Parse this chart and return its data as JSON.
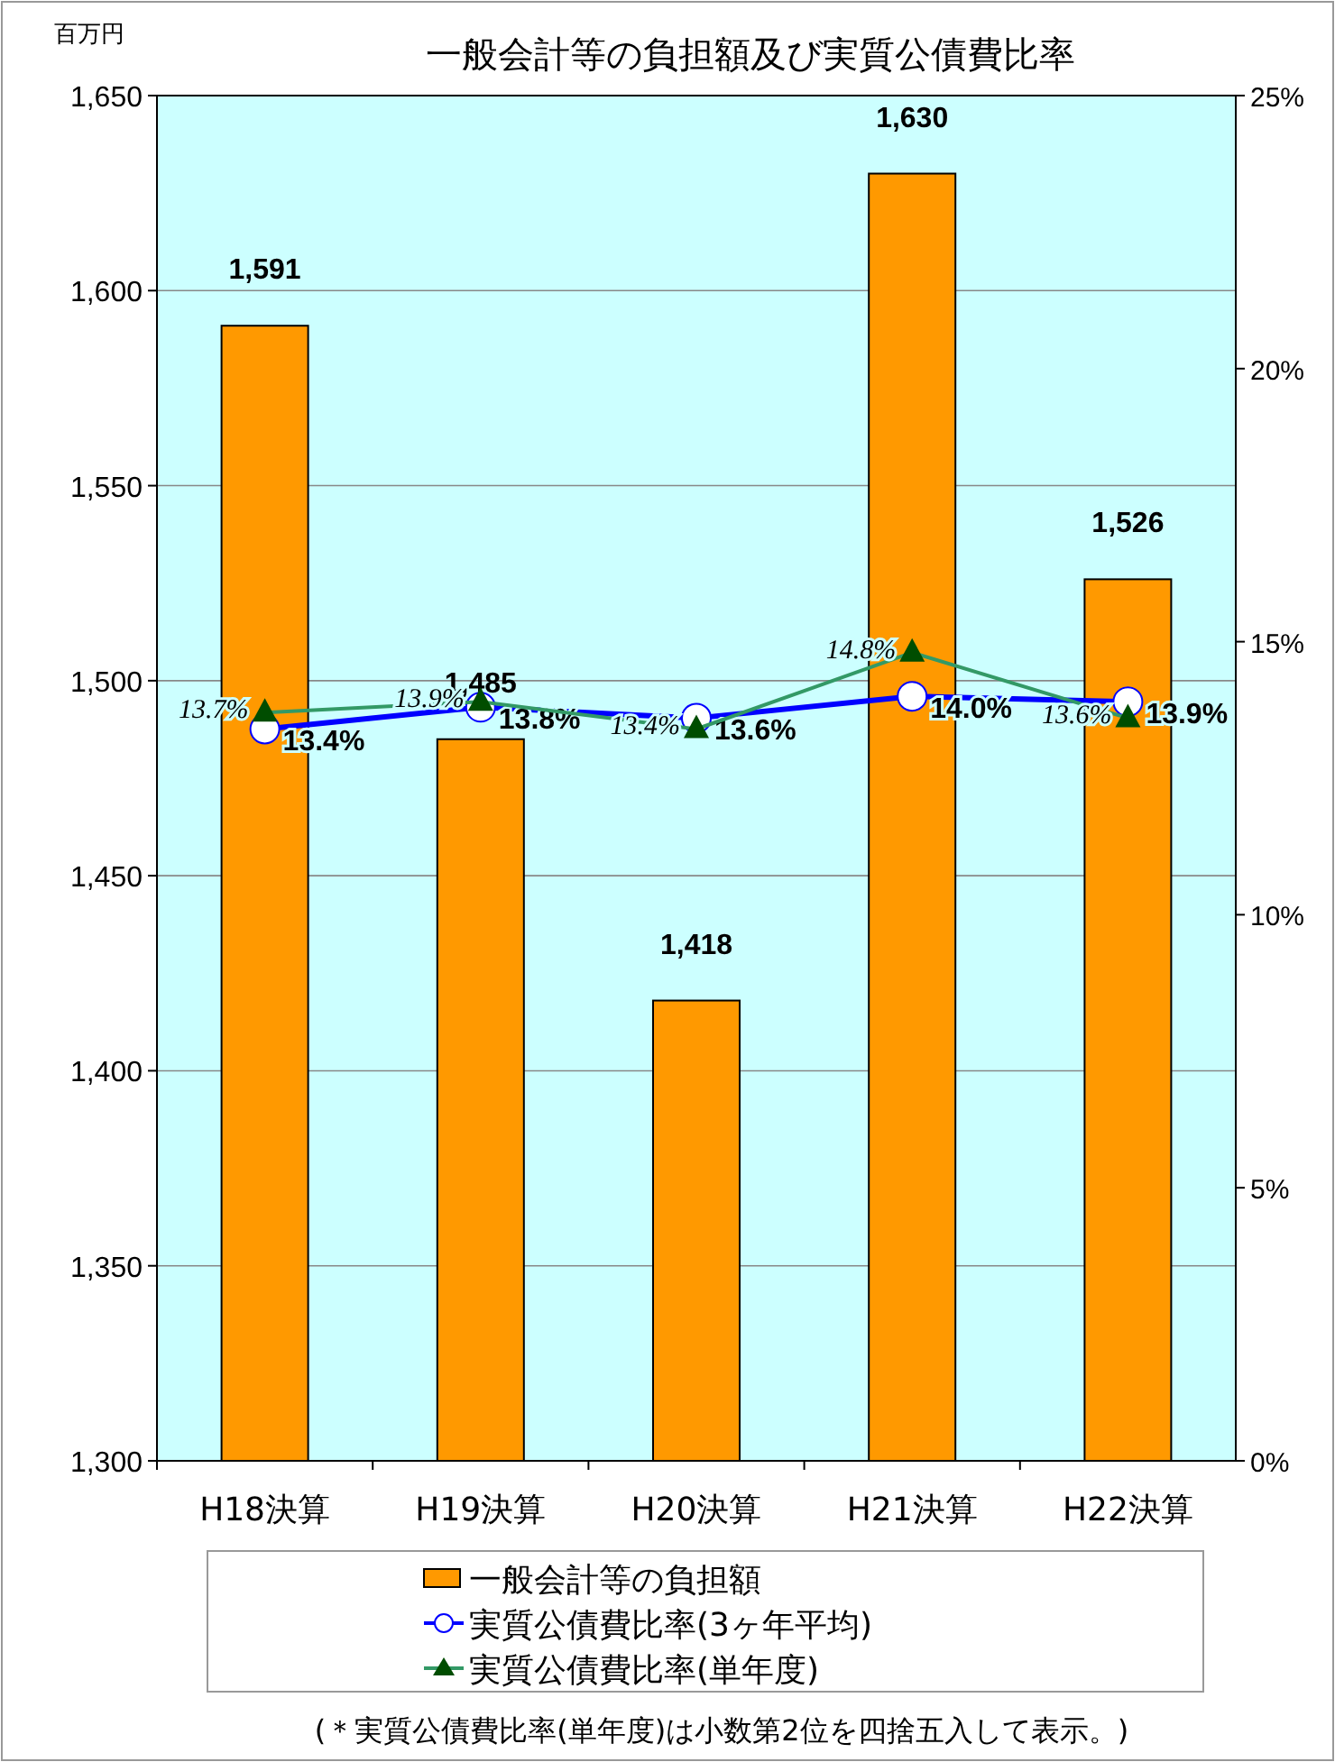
{
  "chart_data": {
    "type": "bar",
    "title": "一般会計等の負担額及び実質公債費比率",
    "ylabel": "百万円",
    "categories": [
      "H18決算",
      "H19決算",
      "H20決算",
      "H21決算",
      "H22決算"
    ],
    "series": [
      {
        "name": "一般会計等の負担額",
        "color": "#ff9900",
        "values": [
          1591,
          1485,
          1418,
          1630,
          1526
        ],
        "value_labels": [
          "1,591",
          "1,485",
          "1,418",
          "1,630",
          "1,526"
        ]
      },
      {
        "name": "実質公債費比率(3ヶ年平均)",
        "type": "line",
        "axis": "y2",
        "marker": "circle",
        "line_style": "solid",
        "color": "#0000ff",
        "values": [
          13.4,
          13.8,
          13.6,
          14.0,
          13.9
        ],
        "value_labels": [
          "13.4%",
          "13.8%",
          "13.6%",
          "14.0%",
          "13.9%"
        ]
      },
      {
        "name": "実質公債費比率(単年度)",
        "type": "line",
        "axis": "y2",
        "marker": "triangle",
        "line_style": "solid",
        "color": "#339966",
        "values": [
          13.7,
          13.9,
          13.4,
          14.8,
          13.6
        ],
        "value_labels": [
          "13.7%",
          "13.9%",
          "13.4%",
          "14.8%",
          "13.6%"
        ]
      }
    ],
    "ylim": [
      1300,
      1650
    ],
    "yticks": [
      {
        "value": 1300,
        "label": "1,300"
      },
      {
        "value": 1350,
        "label": "1,350"
      },
      {
        "value": 1400,
        "label": "1,400"
      },
      {
        "value": 1450,
        "label": "1,450"
      },
      {
        "value": 1500,
        "label": "1,500"
      },
      {
        "value": 1550,
        "label": "1,550"
      },
      {
        "value": 1600,
        "label": "1,600"
      },
      {
        "value": 1650,
        "label": "1,650"
      }
    ],
    "y2lim": [
      0,
      25
    ],
    "y2ticks": [
      {
        "value": 0,
        "label": "0%"
      },
      {
        "value": 5,
        "label": "5%"
      },
      {
        "value": 10,
        "label": "10%"
      },
      {
        "value": 15,
        "label": "15%"
      },
      {
        "value": 20,
        "label": "20%"
      },
      {
        "value": 25,
        "label": "25%"
      }
    ],
    "grid": "y",
    "legend": "bottom",
    "annotations": [
      "(＊実質公債費比率(単年度)は小数第2位を四捨五入して表示。)"
    ]
  }
}
